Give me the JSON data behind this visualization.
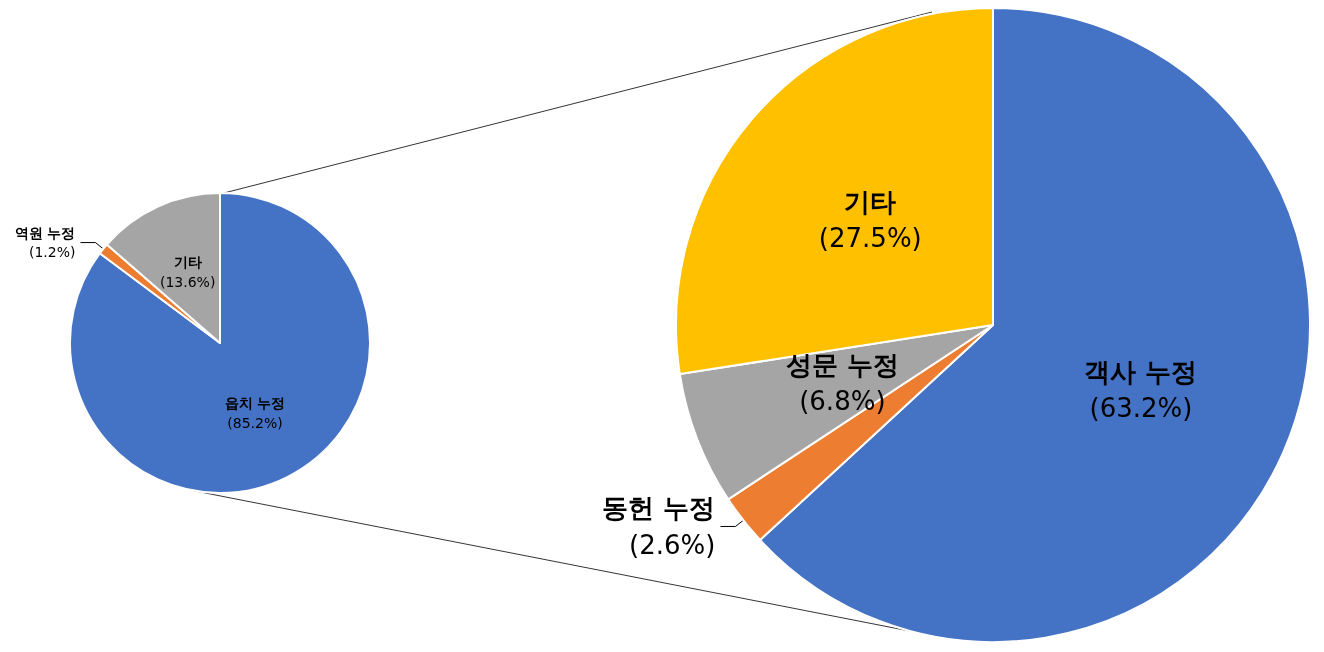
{
  "chart_data": [
    {
      "type": "pie",
      "categories": [
        "읍치 누정",
        "역원 누정",
        "기타"
      ],
      "values": [
        85.2,
        1.2,
        13.6
      ],
      "value_labels": [
        "(85.2%)",
        "(1.2%)",
        "(13.6%)"
      ],
      "colors": [
        "#4472c4",
        "#ed7d31",
        "#a5a5a5"
      ]
    },
    {
      "type": "pie",
      "categories": [
        "객사 누정",
        "동헌 누정",
        "성문 누정",
        "기타"
      ],
      "values": [
        63.2,
        2.6,
        6.8,
        27.5
      ],
      "value_labels": [
        "(63.2%)",
        "(2.6%)",
        "(6.8%)",
        "(27.5%)"
      ],
      "colors": [
        "#4472c4",
        "#ed7d31",
        "#a5a5a5",
        "#ffc000"
      ]
    }
  ]
}
